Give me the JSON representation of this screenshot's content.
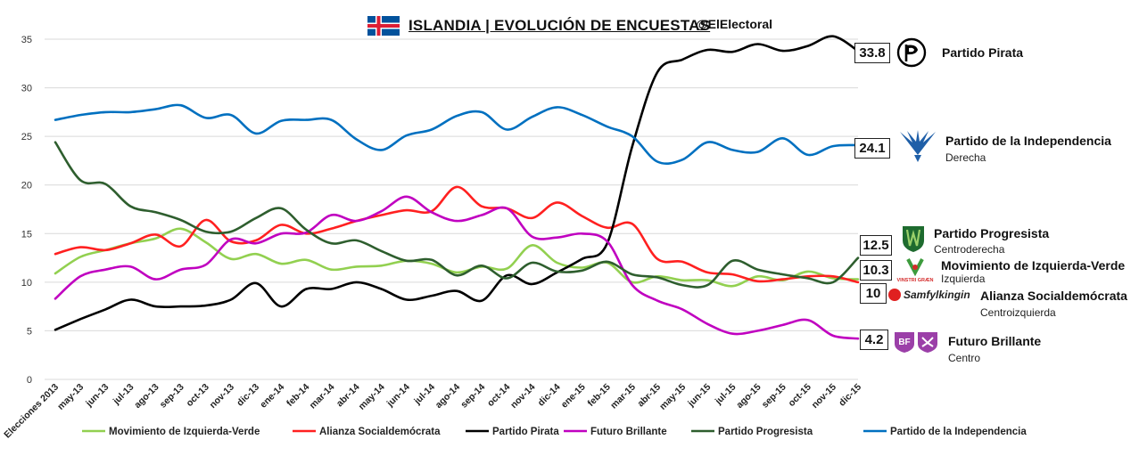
{
  "header": {
    "title": "ISLANDIA | EVOLUCIÓN DE ENCUESTAS",
    "handle": "@ElElectoral"
  },
  "colors": {
    "movimiento": "#92d050",
    "alianza": "#ff2020",
    "pirata": "#000000",
    "futuro": "#c000c0",
    "progresista": "#2e5e2e",
    "independencia": "#0070c0"
  },
  "parties": [
    {
      "key": "pirata",
      "value": "33.8",
      "name": "Partido Pirata",
      "ideology": "",
      "logo": "pirate-flag-icon"
    },
    {
      "key": "independencia",
      "value": "24.1",
      "name": "Partido de la Independencia",
      "ideology": "Derecha",
      "logo": "falcon-icon"
    },
    {
      "key": "progresista",
      "value": "12.5",
      "name": "Partido Progresista",
      "ideology": "Centroderecha",
      "logo": "shield-icon"
    },
    {
      "key": "movimiento",
      "value": "10.3",
      "name": "Movimiento de Izquierda-Verde",
      "ideology": "Izquierda",
      "logo": "vg-icon",
      "logo_text": "VINSTRI GRÆN"
    },
    {
      "key": "alianza",
      "value": "10",
      "name": "Alianza Socialdemócrata",
      "ideology": "Centroizquierda",
      "logo": "rose-icon",
      "logo_text": "Samfylkingin"
    },
    {
      "key": "futuro",
      "value": "4.2",
      "name": "Futuro Brillante",
      "ideology": "Centro",
      "logo": "bf-icon",
      "logo_text": "BF"
    }
  ],
  "chart_data": {
    "type": "line",
    "title": "ISLANDIA | EVOLUCIÓN DE ENCUESTAS",
    "xlabel": "",
    "ylabel": "",
    "ylim": [
      0,
      35
    ],
    "yticks": [
      0,
      5,
      10,
      15,
      20,
      25,
      30,
      35
    ],
    "grid": true,
    "legend_position": "bottom",
    "categories": [
      "Elecciones 2013",
      "may-13",
      "jun-13",
      "jul-13",
      "ago-13",
      "sep-13",
      "oct-13",
      "nov-13",
      "dic-13",
      "ene-14",
      "feb-14",
      "mar-14",
      "abr-14",
      "may-14",
      "jun-14",
      "jul-14",
      "ago-14",
      "sep-14",
      "oct-14",
      "nov-14",
      "dic-14",
      "ene-15",
      "feb-15",
      "mar-15",
      "abr-15",
      "may-15",
      "jun-15",
      "jul-15",
      "ago-15",
      "sep-15",
      "oct-15",
      "nov-15",
      "dic-15"
    ],
    "series": [
      {
        "key": "movimiento",
        "name": "Movimiento de Izquierda-Verde",
        "color": "#92d050",
        "values": [
          10.9,
          12.6,
          13.3,
          14.0,
          14.5,
          15.5,
          14.1,
          12.4,
          12.9,
          11.9,
          12.3,
          11.3,
          11.6,
          11.7,
          12.2,
          11.9,
          11.0,
          11.6,
          11.4,
          13.8,
          12.0,
          11.5,
          12.0,
          10.0,
          10.6,
          10.2,
          10.2,
          9.6,
          10.6,
          10.2,
          11.1,
          10.4,
          10.3
        ]
      },
      {
        "key": "alianza",
        "name": "Alianza Socialdemócrata",
        "color": "#ff2020",
        "values": [
          12.9,
          13.6,
          13.3,
          14.0,
          14.9,
          13.7,
          16.4,
          14.2,
          14.3,
          15.9,
          15.0,
          15.5,
          16.3,
          16.9,
          17.4,
          17.3,
          19.8,
          17.8,
          17.6,
          16.6,
          18.2,
          16.8,
          15.6,
          16.0,
          12.4,
          12.1,
          11.0,
          10.8,
          10.1,
          10.3,
          10.6,
          10.6,
          10.0
        ]
      },
      {
        "key": "pirata",
        "name": "Partido Pirata",
        "color": "#000000",
        "values": [
          5.1,
          6.2,
          7.2,
          8.2,
          7.5,
          7.5,
          7.6,
          8.2,
          9.9,
          7.5,
          9.3,
          9.3,
          10.0,
          9.3,
          8.2,
          8.6,
          9.1,
          8.1,
          10.7,
          9.8,
          11.0,
          12.4,
          14.0,
          24.0,
          31.6,
          32.9,
          33.9,
          33.7,
          34.5,
          33.8,
          34.3,
          35.3,
          33.8
        ]
      },
      {
        "key": "futuro",
        "name": "Futuro Brillante",
        "color": "#c000c0",
        "values": [
          8.3,
          10.6,
          11.3,
          11.6,
          10.3,
          11.3,
          11.8,
          14.4,
          14.0,
          15.0,
          15.1,
          16.9,
          16.3,
          17.3,
          18.8,
          17.2,
          16.3,
          16.9,
          17.6,
          14.7,
          14.6,
          15.0,
          14.2,
          9.7,
          8.1,
          7.2,
          5.7,
          4.7,
          5.0,
          5.6,
          6.1,
          4.5,
          4.2
        ]
      },
      {
        "key": "progresista",
        "name": "Partido Progresista",
        "color": "#2e5e2e",
        "values": [
          24.4,
          20.5,
          20.1,
          17.8,
          17.2,
          16.4,
          15.2,
          15.2,
          16.6,
          17.6,
          15.4,
          14.0,
          14.3,
          13.2,
          12.2,
          12.3,
          10.7,
          11.7,
          10.4,
          12.0,
          11.1,
          11.2,
          12.1,
          10.8,
          10.5,
          9.7,
          9.7,
          12.2,
          11.3,
          10.8,
          10.4,
          10.0,
          12.5
        ]
      },
      {
        "key": "independencia",
        "name": "Partido de la Independencia",
        "color": "#0070c0",
        "values": [
          26.7,
          27.2,
          27.5,
          27.5,
          27.8,
          28.2,
          26.9,
          27.2,
          25.3,
          26.6,
          26.7,
          26.7,
          24.7,
          23.6,
          25.1,
          25.7,
          27.1,
          27.5,
          25.7,
          27.0,
          28.0,
          27.2,
          26.0,
          25.0,
          22.4,
          22.6,
          24.4,
          23.6,
          23.4,
          24.8,
          23.1,
          24.0,
          24.1
        ]
      }
    ]
  }
}
